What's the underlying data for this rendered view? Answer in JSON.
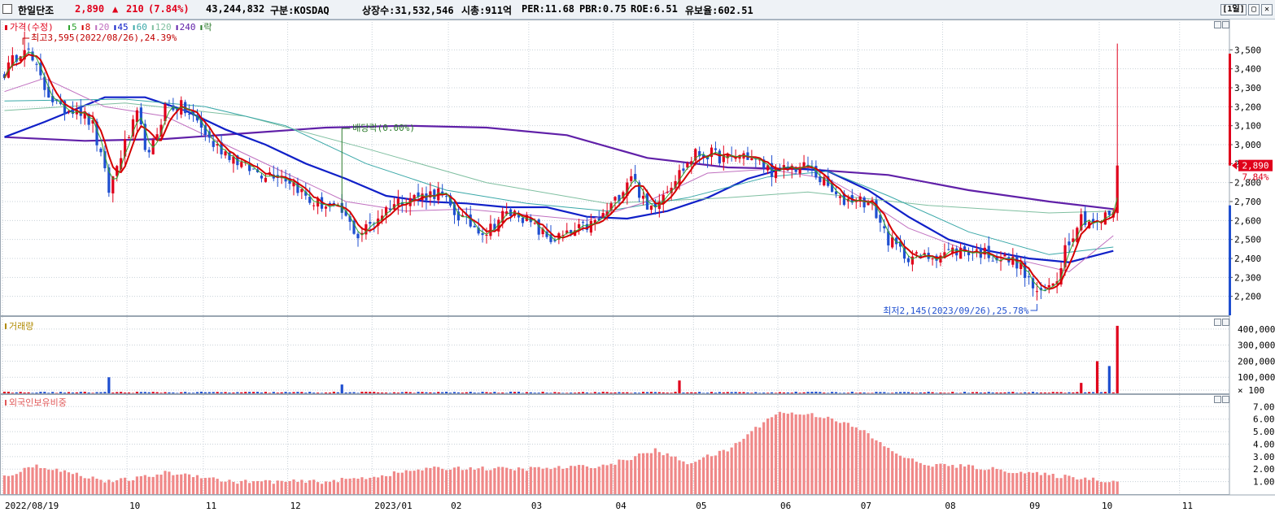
{
  "header": {
    "name": "한일단조",
    "price": "2,890",
    "change_sign": "▲",
    "change": "210",
    "change_pct": "(7.84%)",
    "volume": "43,244,832",
    "market": "구분:KOSDAQ",
    "listed": "상장수:31,532,546",
    "marketcap": "시총:911억",
    "per": "PER:11.68",
    "pbr": "PBR:0.75",
    "roe": "ROE:6.51",
    "float_rate": "유보율:602.51",
    "period": "[1일]"
  },
  "colors": {
    "up": "#e0001b",
    "down": "#1f4fd0",
    "ma5": "#2ea32e",
    "ma8": "#d40000",
    "ma20": "#c070c0",
    "ma45": "#1020c8",
    "ma60": "#3aa8a8",
    "ma120": "#7fbfa0",
    "ma240": "#6020a8",
    "volume_up": "#e0001b",
    "volume_down": "#1f4fd0",
    "foreign": "#f08888"
  },
  "chart_data": [
    {
      "type": "candlestick",
      "legend": [
        {
          "label": "가격(수정)",
          "color": "#e0001b"
        },
        {
          "label": "5",
          "color": "#2ea32e"
        },
        {
          "label": "8",
          "color": "#d40000"
        },
        {
          "label": "20",
          "color": "#c070c0"
        },
        {
          "label": "45",
          "color": "#1020c8"
        },
        {
          "label": "60",
          "color": "#3aa8a8"
        },
        {
          "label": "120",
          "color": "#7fbfa0"
        },
        {
          "label": "240",
          "color": "#6020a8"
        },
        {
          "label": "락",
          "color": "#2a7a2a"
        }
      ],
      "y_ticks": [
        "3,500",
        "3,400",
        "3,300",
        "3,200",
        "3,100",
        "3,000",
        "2,900",
        "2,800",
        "2,700",
        "2,600",
        "2,500",
        "2,400",
        "2,300",
        "2,200"
      ],
      "ylim": [
        2100,
        3600
      ],
      "close_marker": {
        "value": 2890,
        "label": "2,890",
        "pct": "7.84%"
      },
      "annotations": {
        "high": "최고3,595(2022/08/26),24.39%",
        "low": "최저2,145(2023/09/26),25.78%",
        "dividend": "배당락(0.00%)"
      },
      "anchors": [
        [
          0,
          3380
        ],
        [
          5,
          3530
        ],
        [
          10,
          3300
        ],
        [
          14,
          3180
        ],
        [
          18,
          3200
        ],
        [
          22,
          3100
        ],
        [
          26,
          2760
        ],
        [
          29,
          2950
        ],
        [
          33,
          3150
        ],
        [
          36,
          2930
        ],
        [
          40,
          3200
        ],
        [
          44,
          3200
        ],
        [
          48,
          3120
        ],
        [
          52,
          3000
        ],
        [
          56,
          2950
        ],
        [
          60,
          2880
        ],
        [
          64,
          2850
        ],
        [
          68,
          2850
        ],
        [
          72,
          2800
        ],
        [
          76,
          2700
        ],
        [
          80,
          2680
        ],
        [
          84,
          2640
        ],
        [
          88,
          2520
        ],
        [
          92,
          2600
        ],
        [
          96,
          2680
        ],
        [
          100,
          2720
        ],
        [
          104,
          2730
        ],
        [
          108,
          2750
        ],
        [
          112,
          2640
        ],
        [
          116,
          2580
        ],
        [
          120,
          2540
        ],
        [
          124,
          2630
        ],
        [
          128,
          2640
        ],
        [
          132,
          2560
        ],
        [
          136,
          2500
        ],
        [
          140,
          2520
        ],
        [
          144,
          2560
        ],
        [
          148,
          2600
        ],
        [
          152,
          2700
        ],
        [
          156,
          2850
        ],
        [
          160,
          2650
        ],
        [
          164,
          2750
        ],
        [
          168,
          2850
        ],
        [
          172,
          2950
        ],
        [
          176,
          2950
        ],
        [
          180,
          2920
        ],
        [
          184,
          2950
        ],
        [
          188,
          2900
        ],
        [
          192,
          2850
        ],
        [
          196,
          2880
        ],
        [
          200,
          2880
        ],
        [
          204,
          2800
        ],
        [
          208,
          2700
        ],
        [
          212,
          2720
        ],
        [
          216,
          2680
        ],
        [
          220,
          2500
        ],
        [
          224,
          2420
        ],
        [
          228,
          2400
        ],
        [
          232,
          2420
        ],
        [
          236,
          2440
        ],
        [
          240,
          2440
        ],
        [
          244,
          2430
        ],
        [
          248,
          2400
        ],
        [
          252,
          2380
        ],
        [
          256,
          2250
        ],
        [
          258,
          2200
        ],
        [
          262,
          2300
        ],
        [
          264,
          2460
        ],
        [
          268,
          2620
        ],
        [
          272,
          2580
        ],
        [
          274,
          2620
        ],
        [
          276,
          2650
        ],
        [
          277,
          2890
        ]
      ],
      "ma_lines": [
        {
          "name": "240",
          "color": "#6020a8",
          "width": 2.2,
          "points": [
            [
              0,
              3040
            ],
            [
              20,
              3020
            ],
            [
              40,
              3030
            ],
            [
              60,
              3060
            ],
            [
              80,
              3090
            ],
            [
              100,
              3100
            ],
            [
              120,
              3090
            ],
            [
              140,
              3050
            ],
            [
              160,
              2930
            ],
            [
              180,
              2880
            ],
            [
              200,
              2870
            ],
            [
              220,
              2840
            ],
            [
              240,
              2760
            ],
            [
              260,
              2700
            ],
            [
              276,
              2660
            ]
          ]
        },
        {
          "name": "45",
          "color": "#1020c8",
          "width": 2.2,
          "points": [
            [
              0,
              3040
            ],
            [
              10,
              3120
            ],
            [
              25,
              3250
            ],
            [
              35,
              3250
            ],
            [
              45,
              3180
            ],
            [
              55,
              3080
            ],
            [
              65,
              3000
            ],
            [
              75,
              2900
            ],
            [
              85,
              2820
            ],
            [
              95,
              2730
            ],
            [
              105,
              2700
            ],
            [
              115,
              2690
            ],
            [
              125,
              2670
            ],
            [
              135,
              2670
            ],
            [
              145,
              2620
            ],
            [
              155,
              2610
            ],
            [
              165,
              2650
            ],
            [
              175,
              2720
            ],
            [
              185,
              2820
            ],
            [
              195,
              2880
            ],
            [
              205,
              2860
            ],
            [
              215,
              2760
            ],
            [
              225,
              2620
            ],
            [
              235,
              2500
            ],
            [
              245,
              2440
            ],
            [
              255,
              2400
            ],
            [
              265,
              2380
            ],
            [
              276,
              2440
            ]
          ]
        },
        {
          "name": "120",
          "color": "#7fbfa0",
          "width": 1,
          "points": [
            [
              0,
              3180
            ],
            [
              30,
              3220
            ],
            [
              60,
              3150
            ],
            [
              90,
              2980
            ],
            [
              120,
              2800
            ],
            [
              150,
              2690
            ],
            [
              180,
              2720
            ],
            [
              200,
              2750
            ],
            [
              230,
              2680
            ],
            [
              260,
              2640
            ],
            [
              276,
              2650
            ]
          ]
        },
        {
          "name": "60",
          "color": "#3aa8a8",
          "width": 1,
          "points": [
            [
              0,
              3230
            ],
            [
              30,
              3240
            ],
            [
              50,
              3200
            ],
            [
              70,
              3100
            ],
            [
              90,
              2900
            ],
            [
              110,
              2760
            ],
            [
              130,
              2690
            ],
            [
              150,
              2650
            ],
            [
              170,
              2720
            ],
            [
              190,
              2830
            ],
            [
              205,
              2860
            ],
            [
              220,
              2730
            ],
            [
              240,
              2540
            ],
            [
              260,
              2420
            ],
            [
              276,
              2460
            ]
          ]
        },
        {
          "name": "20",
          "color": "#c070c0",
          "width": 1,
          "points": [
            [
              0,
              3280
            ],
            [
              10,
              3350
            ],
            [
              25,
              3200
            ],
            [
              40,
              3150
            ],
            [
              55,
              3000
            ],
            [
              70,
              2850
            ],
            [
              85,
              2700
            ],
            [
              100,
              2650
            ],
            [
              115,
              2660
            ],
            [
              130,
              2630
            ],
            [
              145,
              2600
            ],
            [
              160,
              2700
            ],
            [
              175,
              2850
            ],
            [
              190,
              2870
            ],
            [
              205,
              2820
            ],
            [
              215,
              2700
            ],
            [
              225,
              2560
            ],
            [
              240,
              2440
            ],
            [
              255,
              2380
            ],
            [
              265,
              2330
            ],
            [
              276,
              2520
            ]
          ]
        },
        {
          "name": "8",
          "color": "#d40000",
          "width": 2,
          "smooth": 4
        },
        {
          "name": "5",
          "color": "#2ea32e",
          "width": 1,
          "smooth": 2
        }
      ]
    },
    {
      "type": "bar",
      "title": "거래량",
      "y_ticks": [
        "400,000",
        "300,000",
        "200,000",
        "100,000",
        "× 100"
      ],
      "ylim": [
        0,
        460000
      ],
      "base": 8000,
      "spikes": [
        [
          26,
          100000
        ],
        [
          84,
          55000
        ],
        [
          168,
          80000
        ],
        [
          268,
          65000
        ],
        [
          272,
          200000
        ],
        [
          275,
          170000
        ],
        [
          277,
          420000
        ]
      ]
    },
    {
      "type": "bar",
      "title": "외국인보유비중",
      "y_ticks": [
        "7.00",
        "6.00",
        "5.00",
        "4.00",
        "3.00",
        "2.00",
        "1.00"
      ],
      "ylim": [
        0,
        7.8
      ],
      "anchors": [
        [
          0,
          1.4
        ],
        [
          8,
          2.3
        ],
        [
          18,
          1.6
        ],
        [
          26,
          1.0
        ],
        [
          34,
          1.3
        ],
        [
          40,
          1.7
        ],
        [
          48,
          1.5
        ],
        [
          56,
          1.0
        ],
        [
          66,
          1.0
        ],
        [
          80,
          1.0
        ],
        [
          92,
          1.4
        ],
        [
          104,
          2.0
        ],
        [
          114,
          2.1
        ],
        [
          126,
          2.0
        ],
        [
          138,
          2.1
        ],
        [
          150,
          2.3
        ],
        [
          162,
          3.5
        ],
        [
          170,
          2.5
        ],
        [
          180,
          3.5
        ],
        [
          186,
          5.0
        ],
        [
          192,
          6.5
        ],
        [
          200,
          6.4
        ],
        [
          206,
          6.1
        ],
        [
          214,
          5.0
        ],
        [
          220,
          3.6
        ],
        [
          228,
          2.4
        ],
        [
          240,
          2.2
        ],
        [
          252,
          1.8
        ],
        [
          260,
          1.5
        ],
        [
          268,
          1.3
        ],
        [
          277,
          1.0
        ]
      ]
    }
  ],
  "x_labels": [
    {
      "bar": 0,
      "label": "2022/08/19"
    },
    {
      "bar": 31,
      "label": "10"
    },
    {
      "bar": 50,
      "label": "11"
    },
    {
      "bar": 71,
      "label": "12"
    },
    {
      "bar": 92,
      "label": "2023/01"
    },
    {
      "bar": 111,
      "label": "02"
    },
    {
      "bar": 131,
      "label": "03"
    },
    {
      "bar": 152,
      "label": "04"
    },
    {
      "bar": 172,
      "label": "05"
    },
    {
      "bar": 193,
      "label": "06"
    },
    {
      "bar": 213,
      "label": "07"
    },
    {
      "bar": 234,
      "label": "08"
    },
    {
      "bar": 255,
      "label": "09"
    },
    {
      "bar": 273,
      "label": "10"
    },
    {
      "bar": 293,
      "label": "11"
    }
  ],
  "n_bars": 278
}
